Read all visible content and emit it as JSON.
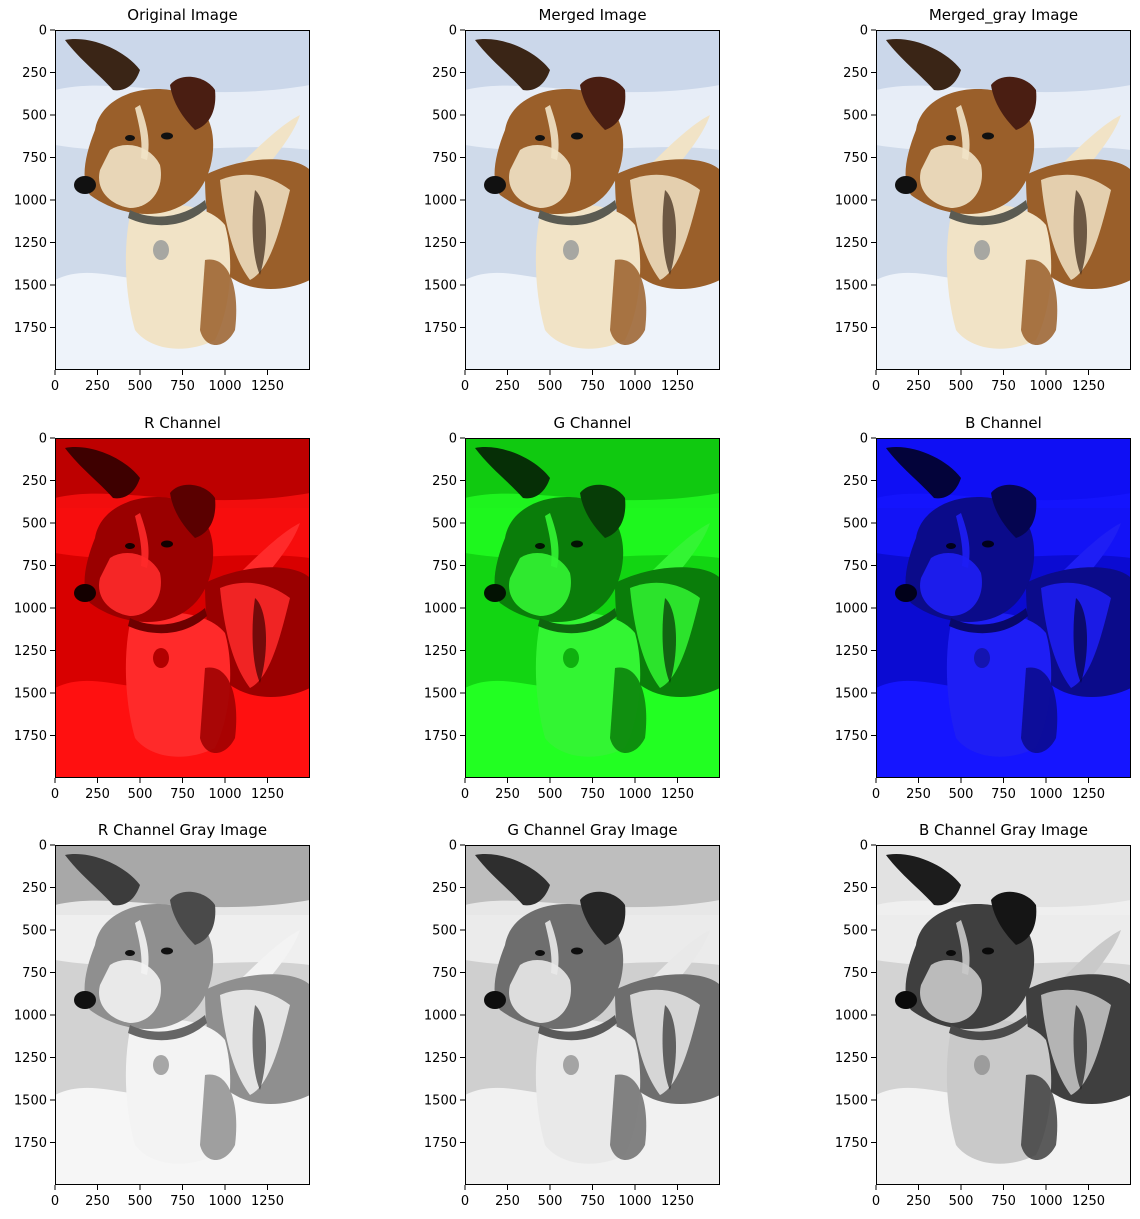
{
  "figure": {
    "panels": [
      {
        "id": "original",
        "title": "Original Image",
        "tone": "color"
      },
      {
        "id": "merged",
        "title": "Merged Image",
        "tone": "color"
      },
      {
        "id": "merged-gray",
        "title": "Merged_gray Image",
        "tone": "color"
      },
      {
        "id": "r-channel",
        "title": "R Channel",
        "tone": "red"
      },
      {
        "id": "g-channel",
        "title": "G Channel",
        "tone": "green"
      },
      {
        "id": "b-channel",
        "title": "B Channel",
        "tone": "blue"
      },
      {
        "id": "r-gray",
        "title": "R Channel Gray Image",
        "tone": "gray-r"
      },
      {
        "id": "g-gray",
        "title": "G Channel Gray Image",
        "tone": "gray-g"
      },
      {
        "id": "b-gray",
        "title": "B Channel Gray Image",
        "tone": "gray-b"
      }
    ],
    "axes": {
      "x_ticks": [
        "0",
        "250",
        "500",
        "750",
        "1000",
        "1250"
      ],
      "x_tick_values": [
        0,
        250,
        500,
        750,
        1000,
        1250
      ],
      "y_ticks": [
        "0",
        "250",
        "500",
        "750",
        "1000",
        "1250",
        "1500",
        "1750"
      ],
      "y_tick_values": [
        0,
        250,
        500,
        750,
        1000,
        1250,
        1500,
        1750
      ],
      "x_range": [
        0,
        1500
      ],
      "y_range": [
        0,
        2000
      ]
    },
    "subject": "dog-in-snow",
    "palettes": {
      "color": {
        "sky": "#c9d6ea",
        "snow": "#eef3fa",
        "snowShade": "#cfdaea",
        "fur": "#9a5f2a",
        "furLight": "#f1e3c6",
        "furDark": "#3a2516",
        "ear": "#4a1e12",
        "nose": "#111111",
        "collar": "#5b5b52",
        "tag": "#a7a7a2"
      },
      "red": {
        "sky": "#b40000",
        "snow": "#ff1010",
        "snowShade": "#d80000",
        "fur": "#9a0000",
        "furLight": "#ff2a2a",
        "furDark": "#3e0000",
        "ear": "#5a0000",
        "nose": "#140000",
        "collar": "#6e0000",
        "tag": "#b20000"
      },
      "green": {
        "sky": "#10c410",
        "snow": "#22ff22",
        "snowShade": "#12d512",
        "fur": "#0a7d0a",
        "furLight": "#33f533",
        "furDark": "#062f06",
        "ear": "#073d07",
        "nose": "#031203",
        "collar": "#0e650e",
        "tag": "#0fb00f"
      },
      "blue": {
        "sky": "#1212ff",
        "snow": "#1515ff",
        "snowShade": "#0b0bd2",
        "fur": "#0b0b8a",
        "furLight": "#1e1ef5",
        "furDark": "#03033a",
        "ear": "#050550",
        "nose": "#01011a",
        "collar": "#08086a",
        "tag": "#1414b0"
      },
      "gray-r": {
        "sky": "#9a9a9a",
        "snow": "#f6f6f6",
        "snowShade": "#d2d2d2",
        "fur": "#8f8f8f",
        "furLight": "#f3f3f3",
        "furDark": "#3c3c3c",
        "ear": "#4a4a4a",
        "nose": "#111111",
        "collar": "#666666",
        "tag": "#a6a6a6"
      },
      "gray-g": {
        "sky": "#b8b8b8",
        "snow": "#f1f1f1",
        "snowShade": "#cfcfcf",
        "fur": "#6e6e6e",
        "furLight": "#e9e9e9",
        "furDark": "#2e2e2e",
        "ear": "#262626",
        "nose": "#0e0e0e",
        "collar": "#5a5a5a",
        "tag": "#a4a4a4"
      },
      "gray-b": {
        "sky": "#e7e7e7",
        "snow": "#f3f3f3",
        "snowShade": "#d3d3d3",
        "fur": "#3f3f3f",
        "furLight": "#c9c9c9",
        "furDark": "#1c1c1c",
        "ear": "#151515",
        "nose": "#0a0a0a",
        "collar": "#4a4a4a",
        "tag": "#9c9c9c"
      }
    }
  }
}
